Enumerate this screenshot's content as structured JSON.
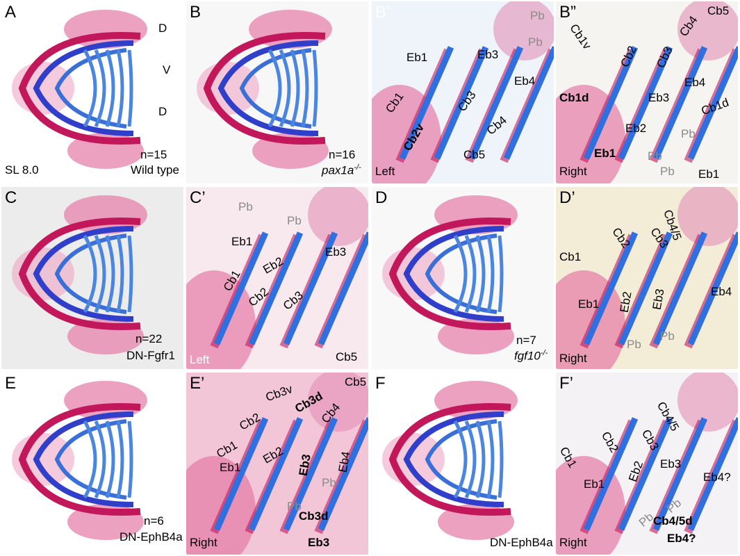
{
  "panels": [
    {
      "letter": "A",
      "labels": [
        "D",
        "V",
        "D",
        "n=15",
        "Wild type",
        "SL 8.0"
      ]
    },
    {
      "letter": "B",
      "labels": [
        "n=16"
      ],
      "genotype": {
        "name": "pax1a",
        "sup": "-/-"
      }
    },
    {
      "letter": "B’",
      "labels": [
        "Pb",
        "Pb",
        "Eb1",
        "Eb3",
        "Eb4",
        "Cb1",
        "Cb2v",
        "Cb3",
        "Cb4",
        "Cb5",
        "Left"
      ]
    },
    {
      "letter": "B”",
      "labels": [
        "Cb5",
        "Cb1v",
        "Cb4",
        "Cb2",
        "Cb3",
        "Cb1d",
        "Eb3",
        "Eb4",
        "Eb2",
        "Pb",
        "Pb",
        "Pb",
        "Cb1d",
        "Eb1",
        "Eb1",
        "Right"
      ]
    },
    {
      "letter": "C",
      "labels": [
        "n=22",
        "DN-Fgfr1"
      ]
    },
    {
      "letter": "C’",
      "labels": [
        "Pb",
        "Pb",
        "Eb1",
        "Eb3",
        "Eb2",
        "Cb1",
        "Cb2",
        "Cb3",
        "Cb5",
        "Left"
      ]
    },
    {
      "letter": "D",
      "labels": [
        "n=7"
      ],
      "genotype": {
        "name": "fgf10",
        "sup": "-/-"
      }
    },
    {
      "letter": "D’",
      "labels": [
        "Cb4/5",
        "Cb2",
        "Cb3",
        "Cb1",
        "Eb1",
        "Eb2",
        "Eb3",
        "Eb4",
        "Pb",
        "Pb",
        "Right"
      ]
    },
    {
      "letter": "E",
      "labels": [
        "n=6",
        "DN-EphB4a"
      ]
    },
    {
      "letter": "E’",
      "labels": [
        "Cb5",
        "Cb3v",
        "Cb3d",
        "Cb4",
        "Cb2",
        "Cb1",
        "Eb2",
        "Eb3",
        "Eb4",
        "Eb1",
        "Pb",
        "Pb",
        "Cb3d",
        "Eb3",
        "Right"
      ]
    },
    {
      "letter": "F",
      "labels": [
        "DN-EphB4a"
      ]
    },
    {
      "letter": "F’",
      "labels": [
        "Cb4/5",
        "Cb3",
        "Cb2",
        "Cb1",
        "Eb3",
        "Eb4?",
        "Eb2",
        "Eb1",
        "Pb",
        "Pb",
        "Cb4/5d",
        "Eb4?",
        "Right"
      ]
    }
  ]
}
